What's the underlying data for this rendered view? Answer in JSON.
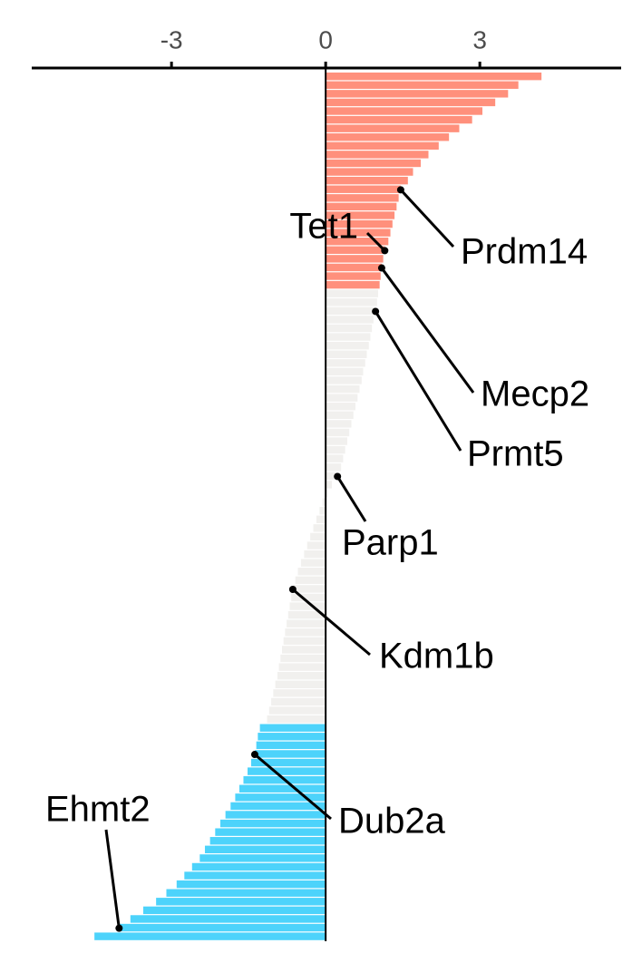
{
  "chart_data": {
    "type": "ranked-bar",
    "xlim": [
      -5.72,
      5.75
    ],
    "xticks": [
      -3,
      0,
      3
    ],
    "series": [
      {
        "color": "#ff907c",
        "values": [
          4.2,
          3.75,
          3.55,
          3.3,
          3.05,
          2.85,
          2.6,
          2.4,
          2.2,
          2.0,
          1.85,
          1.7,
          1.6,
          1.46,
          1.42,
          1.38,
          1.34,
          1.3,
          1.26,
          1.22,
          1.15,
          1.12,
          1.09,
          1.07,
          1.05
        ],
        "categories": [
          null,
          null,
          null,
          null,
          null,
          null,
          null,
          null,
          null,
          null,
          null,
          null,
          null,
          "Prdm14",
          null,
          null,
          null,
          null,
          null,
          null,
          "Tet1",
          null,
          "Mecp2",
          null,
          null
        ]
      },
      {
        "color": "#f1f0ee",
        "values": [
          1.02,
          1.0,
          0.97,
          0.93,
          0.9,
          0.87,
          0.84,
          0.8,
          0.77,
          0.73,
          0.7,
          0.66,
          0.62,
          0.58,
          0.54,
          0.5,
          0.46,
          0.42,
          0.38,
          0.34,
          0.3,
          0.23,
          0.12,
          0.03,
          -0.06,
          -0.12,
          -0.18,
          -0.24,
          -0.3,
          -0.36,
          -0.42,
          -0.48,
          -0.54,
          -0.59,
          -0.64,
          -0.67,
          -0.7,
          -0.73,
          -0.76,
          -0.79,
          -0.82,
          -0.85,
          -0.88,
          -0.91,
          -0.94,
          -0.98,
          -1.02,
          -1.06,
          -1.1,
          -1.14
        ],
        "categories": [
          null,
          null,
          "Prmt5",
          null,
          null,
          null,
          null,
          null,
          null,
          null,
          null,
          null,
          null,
          null,
          null,
          null,
          null,
          null,
          null,
          null,
          null,
          "Parp1",
          null,
          null,
          null,
          null,
          null,
          null,
          null,
          null,
          null,
          null,
          null,
          null,
          "Kdm1b",
          null,
          null,
          null,
          null,
          null,
          null,
          null,
          null,
          null,
          null,
          null,
          null,
          null,
          null,
          null
        ]
      },
      {
        "color": "#4dd3fb",
        "values": [
          -1.28,
          -1.32,
          -1.35,
          -1.38,
          -1.45,
          -1.52,
          -1.6,
          -1.68,
          -1.76,
          -1.85,
          -1.95,
          -2.05,
          -2.15,
          -2.25,
          -2.35,
          -2.45,
          -2.6,
          -2.75,
          -2.9,
          -3.1,
          -3.3,
          -3.55,
          -3.8,
          -4.02,
          -4.5
        ],
        "categories": [
          null,
          null,
          null,
          "Dub2a",
          null,
          null,
          null,
          null,
          null,
          null,
          null,
          null,
          null,
          null,
          null,
          null,
          null,
          null,
          null,
          null,
          null,
          null,
          null,
          "Ehmt2",
          null
        ]
      }
    ]
  }
}
